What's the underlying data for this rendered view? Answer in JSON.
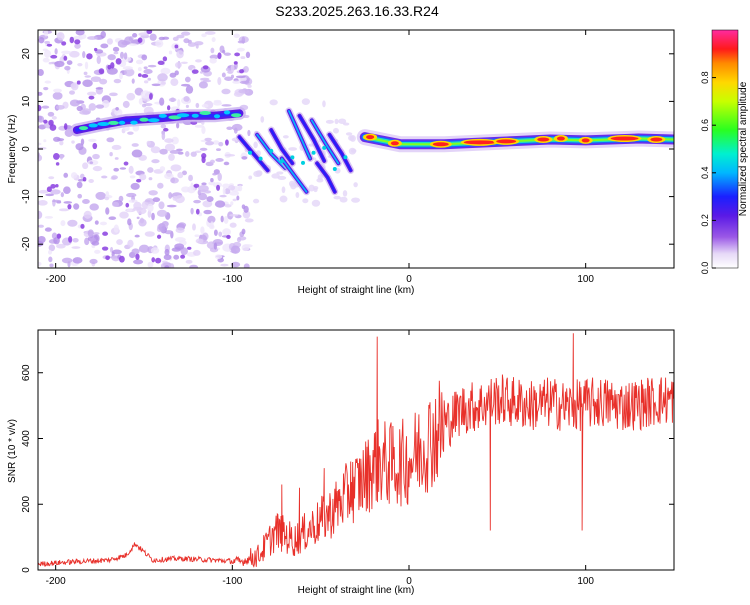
{
  "title": "S233.2025.263.16.33.R24",
  "colorbar": {
    "label": "Normalized spectral amplitude",
    "ticks": [
      "0.0",
      "0.2",
      "0.4",
      "0.6",
      "0.8"
    ],
    "tick_values": [
      0.0,
      0.2,
      0.4,
      0.6,
      0.8
    ],
    "range": [
      0,
      1
    ]
  },
  "chart_data": [
    {
      "type": "heatmap",
      "title": "",
      "xlabel": "Height of straight line (km)",
      "ylabel": "Frequency (Hz)",
      "xlim": [
        -210,
        150
      ],
      "ylim": [
        -25,
        25
      ],
      "xticks": [
        -200,
        -100,
        0,
        100
      ],
      "xtick_labels": [
        "-200",
        "-100",
        "0",
        "100"
      ],
      "yticks": [
        20,
        10,
        0,
        -10,
        -20
      ],
      "ytick_labels": [
        "20",
        "10",
        "0",
        "-10",
        "-20"
      ],
      "ridges": [
        {
          "name": "left band",
          "points": [
            [
              -188,
              4
            ],
            [
              -175,
              5
            ],
            [
              -160,
              6
            ],
            [
              -140,
              6.5
            ],
            [
              -125,
              7
            ],
            [
              -110,
              7
            ],
            [
              -96,
              7.5
            ]
          ]
        },
        {
          "name": "transition streaks",
          "points": [
            [
              -95,
              2
            ],
            [
              -85,
              -2
            ],
            [
              -75,
              -4
            ],
            [
              -65,
              -1
            ],
            [
              -55,
              0
            ],
            [
              -45,
              -2
            ],
            [
              -32,
              -4
            ]
          ]
        },
        {
          "name": "right band",
          "points": [
            [
              -25,
              2.5
            ],
            [
              -5,
              1
            ],
            [
              20,
              1
            ],
            [
              50,
              1.5
            ],
            [
              80,
              2
            ],
            [
              100,
              1.8
            ],
            [
              130,
              2.2
            ],
            [
              150,
              2
            ]
          ]
        }
      ]
    },
    {
      "type": "line",
      "title": "",
      "xlabel": "Height of straight line (km)",
      "ylabel": "SNR (10 * v/v)",
      "xlim": [
        -210,
        150
      ],
      "ylim": [
        0,
        730
      ],
      "xticks": [
        -200,
        -100,
        0,
        100
      ],
      "xtick_labels": [
        "-200",
        "-100",
        "0",
        "100"
      ],
      "yticks": [
        0,
        200,
        400,
        600
      ],
      "ytick_labels": [
        "0",
        "200",
        "400",
        "600"
      ],
      "series": [
        {
          "name": "SNR",
          "color": "#e8302a",
          "x": [
            -210,
            -190,
            -170,
            -160,
            -155,
            -145,
            -130,
            -110,
            -95,
            -85,
            -75,
            -65,
            -55,
            -45,
            -35,
            -25,
            -18,
            -10,
            0,
            10,
            20,
            30,
            40,
            50,
            60,
            70,
            80,
            90,
            100,
            110,
            120,
            130,
            140,
            150
          ],
          "y": [
            18,
            25,
            30,
            45,
            80,
            30,
            35,
            30,
            25,
            45,
            120,
            90,
            130,
            170,
            230,
            280,
            330,
            320,
            330,
            390,
            440,
            490,
            500,
            520,
            510,
            500,
            510,
            495,
            505,
            510,
            500,
            505,
            515,
            520
          ],
          "spikes": [
            [
              -72,
              260
            ],
            [
              -62,
              250
            ],
            [
              -48,
              310
            ],
            [
              -33,
              330
            ],
            [
              -18,
              710
            ],
            [
              46,
              120
            ],
            [
              93,
              720
            ],
            [
              98,
              120
            ]
          ]
        }
      ]
    }
  ]
}
